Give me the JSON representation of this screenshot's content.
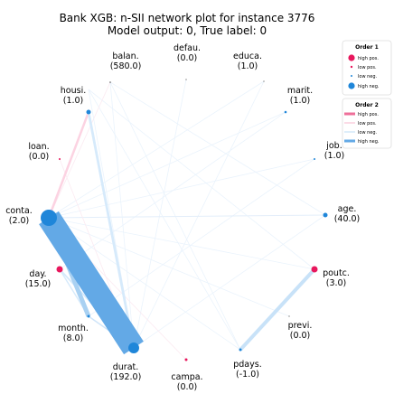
{
  "title_line1": "Bank XGB: n-SII network plot for instance 3776",
  "title_line2": "Model output: 0, True label: 0",
  "colors": {
    "high_pos": "#e8175d",
    "low_pos": "#f7b7ce",
    "low_neg": "#bcdcf6",
    "high_neg": "#1f86d9"
  },
  "features": [
    {
      "id": "balan",
      "name": "balan.",
      "value": "(580.0)"
    },
    {
      "id": "defau",
      "name": "defau.",
      "value": "(0.0)"
    },
    {
      "id": "educa",
      "name": "educa.",
      "value": "(1.0)"
    },
    {
      "id": "marit",
      "name": "marit.",
      "value": "(1.0)"
    },
    {
      "id": "job",
      "name": "job.",
      "value": "(1.0)"
    },
    {
      "id": "age",
      "name": "age.",
      "value": "(40.0)"
    },
    {
      "id": "poutc",
      "name": "poutc.",
      "value": "(3.0)"
    },
    {
      "id": "previ",
      "name": "previ.",
      "value": "(0.0)"
    },
    {
      "id": "pdays",
      "name": "pdays.",
      "value": "(-1.0)"
    },
    {
      "id": "campa",
      "name": "campa.",
      "value": "(0.0)"
    },
    {
      "id": "durat",
      "name": "durat.",
      "value": "(192.0)"
    },
    {
      "id": "month",
      "name": "month.",
      "value": "(8.0)"
    },
    {
      "id": "day",
      "name": "day.",
      "value": "(15.0)"
    },
    {
      "id": "conta",
      "name": "conta.",
      "value": "(2.0)"
    },
    {
      "id": "loan",
      "name": "loan.",
      "value": "(0.0)"
    },
    {
      "id": "housi",
      "name": "housi.",
      "value": "(1.0)"
    }
  ],
  "legend1": {
    "title": "Order 1",
    "items": [
      "high pos.",
      "low pos.",
      "low neg.",
      "high neg."
    ]
  },
  "legend2": {
    "title": "Order 2",
    "items": [
      "high pos.",
      "low pos.",
      "low neg.",
      "high neg."
    ]
  }
}
